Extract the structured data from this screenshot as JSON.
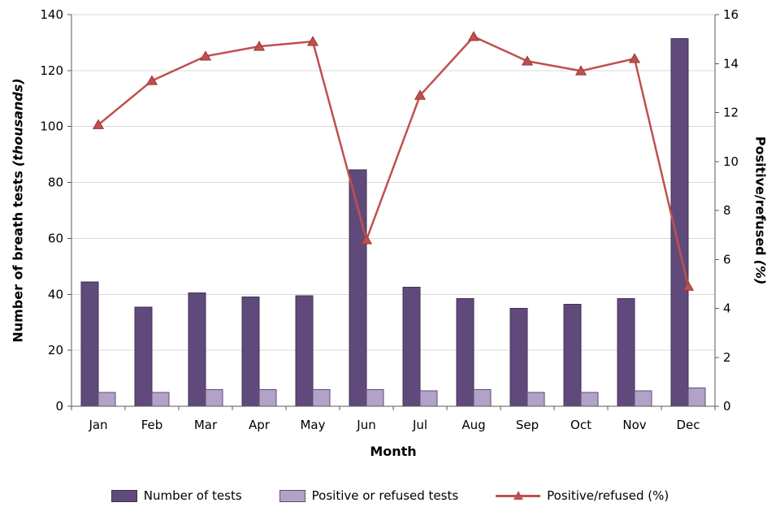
{
  "chart_data": {
    "type": "combo-bar-line",
    "categories": [
      "Jan",
      "Feb",
      "Mar",
      "Apr",
      "May",
      "Jun",
      "Jul",
      "Aug",
      "Sep",
      "Oct",
      "Nov",
      "Dec"
    ],
    "series": [
      {
        "name": "Number of tests",
        "type": "bar",
        "axis": "left",
        "values": [
          44.5,
          35.5,
          40.5,
          39,
          39.5,
          84.5,
          42.5,
          38.5,
          35,
          36.5,
          38.5,
          131.5
        ]
      },
      {
        "name": "Positive or refused tests",
        "type": "bar",
        "axis": "left",
        "values": [
          5,
          5,
          6,
          6,
          6,
          6,
          5.5,
          6,
          5,
          5,
          5.5,
          6.5
        ]
      },
      {
        "name": "Positive/refused (%)",
        "type": "line",
        "axis": "right",
        "values": [
          11.5,
          13.3,
          14.3,
          14.7,
          14.9,
          6.8,
          12.7,
          15.1,
          14.1,
          13.7,
          14.2,
          4.9
        ]
      }
    ],
    "left_axis": {
      "title": "Number of breath tests",
      "title_italic": "(thousands)",
      "min": 0,
      "max": 140,
      "step": 20,
      "ticks": [
        0,
        20,
        40,
        60,
        80,
        100,
        120,
        140
      ]
    },
    "right_axis": {
      "title": "Positive/refused",
      "title_italic": "(%)",
      "min": 0,
      "max": 16,
      "step": 2,
      "ticks": [
        0,
        2,
        4,
        6,
        8,
        10,
        12,
        14,
        16
      ]
    },
    "x_axis": {
      "title": "Month"
    },
    "legend_position": "bottom",
    "grid": "horizontal",
    "colors": {
      "bar1": "#604a7b",
      "bar1_border": "#403152",
      "bar2": "#b3a2c7",
      "bar2_border": "#604a7b",
      "line": "#c0504d",
      "marker_border": "#953735",
      "grid": "#d9d9d9",
      "axis": "#595959"
    }
  }
}
